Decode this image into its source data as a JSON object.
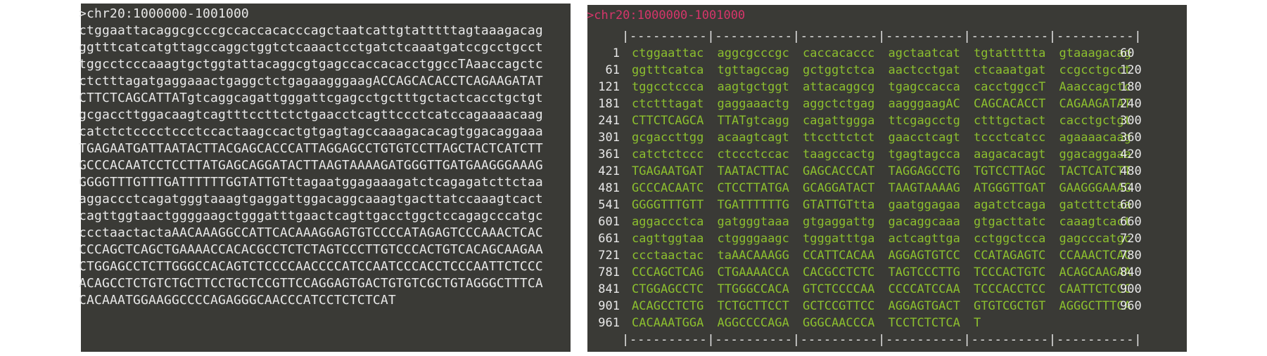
{
  "left_panel": {
    "header": ">chr20:1000000-1001000",
    "lines": [
      "ctggaattacaggcgcccgccaccacacccagctaatcattgtatttttagtaaagacag",
      "ggtttcatcatgttagccaggctggtctcaaactcctgatctcaaatgatccgcctgcct",
      "tggcctcccaaagtgctggtattacaggcgtgagccaccacacctggccTAaaccagctc",
      "ctctttagatgaggaaactgaggctctgagaagggaagACCAGCACACCTCAGAAGATAT",
      "CTTCTCAGCATTATgtcaggcagattgggattcgagcctgctttgctactcacctgctgt",
      "gcgaccttggacaagtcagtttccttctctgaacctcagttccctcatccagaaaacaag",
      "catctctcccctccctccactaagccactgtgagtagccaaagacacagtggacaggaaa",
      "TGAGAATGATTAATACTTACGAGCACCCATTAGGAGCCTGTGTCCTTAGCTACTCATCTT",
      "GCCCACAATCCTCCTTATGAGCAGGATACTTAAGTAAAAGATGGGTTGATGAAGGGAAAG",
      "GGGGTTTGTTTGATTTTTTGGTATTGTttagaatggagaaagatctcagagatcttctaa",
      "aggaccctcagatgggtaaagtgaggattggacaggcaaagtgacttatccaaagtcact",
      "cagttggtaactggggaagctgggatttgaactcagttgacctggctccagagcccatgc",
      "ccctaactactaAACAAAGGCCATTCACAAAGGAGTGTCCCCATAGAGTCCCAAACTCAC",
      "CCCAGCTCAGCTGAAAACCACACGCCTCTCTAGTCCCTTGTCCCACTGTCACAGCAAGAA",
      "CTGGAGCCTCTTGGGCCACAGTCTCCCCAACCCCATCCAATCCCACCTCCCAATTCTCCC",
      "ACAGCCTCTGTCTGCTTCCTGCTCCGTTCCAGGAGTGACTGTGTCGCTGTAGGGCTTTCA",
      "CACAAATGGAAGGCCCCAGAGGGCAACCCATCCTCTCTCAT"
    ]
  },
  "right_panel": {
    "header": ">chr20:1000000-1001000",
    "ruler_top": "|----------|----------|----------|----------|----------|----------|",
    "ruler_bottom": "|----------|----------|----------|----------|----------|----------|",
    "rows": [
      {
        "start": "1",
        "blocks": [
          "ctggaattac",
          "aggcgcccgc",
          "caccacaccc",
          "agctaatcat",
          "tgtattttta",
          "gtaaagacag"
        ],
        "end": "60"
      },
      {
        "start": "61",
        "blocks": [
          "ggtttcatca",
          "tgttagccag",
          "gctggtctca",
          "aactcctgat",
          "ctcaaatgat",
          "ccgcctgcct"
        ],
        "end": "120"
      },
      {
        "start": "121",
        "blocks": [
          "tggcctccca",
          "aagtgctggt",
          "attacaggcg",
          "tgagccacca",
          "cacctggccT",
          "Aaaccagctc"
        ],
        "end": "180"
      },
      {
        "start": "181",
        "blocks": [
          "ctctttagat",
          "gaggaaactg",
          "aggctctgag",
          "aagggaagAC",
          "CAGCACACCT",
          "CAGAAGATAT"
        ],
        "end": "240"
      },
      {
        "start": "241",
        "blocks": [
          "CTTCTCAGCA",
          "TTATgtcagg",
          "cagattggga",
          "ttcgagcctg",
          "ctttgctact",
          "cacctgctgt"
        ],
        "end": "300"
      },
      {
        "start": "301",
        "blocks": [
          "gcgaccttgg",
          "acaagtcagt",
          "ttccttctct",
          "gaacctcagt",
          "tccctcatcc",
          "agaaaacaag"
        ],
        "end": "360"
      },
      {
        "start": "361",
        "blocks": [
          "catctctccc",
          "ctccctccac",
          "taagccactg",
          "tgagtagcca",
          "aagacacagt",
          "ggacaggaaa"
        ],
        "end": "420"
      },
      {
        "start": "421",
        "blocks": [
          "TGAGAATGAT",
          "TAATACTTAC",
          "GAGCACCCAT",
          "TAGGAGCCTG",
          "TGTCCTTAGC",
          "TACTCATCTT"
        ],
        "end": "480"
      },
      {
        "start": "481",
        "blocks": [
          "GCCCACAATC",
          "CTCCTTATGA",
          "GCAGGATACT",
          "TAAGTAAAAG",
          "ATGGGTTGAT",
          "GAAGGGAAAG"
        ],
        "end": "540"
      },
      {
        "start": "541",
        "blocks": [
          "GGGGTTTGTT",
          "TGATTTTTTG",
          "GTATTGTtta",
          "gaatggagaa",
          "agatctcaga",
          "gatcttctaa"
        ],
        "end": "600"
      },
      {
        "start": "601",
        "blocks": [
          "aggaccctca",
          "gatgggtaaa",
          "gtgaggattg",
          "gacaggcaaa",
          "gtgacttatc",
          "caaagtcact"
        ],
        "end": "660"
      },
      {
        "start": "661",
        "blocks": [
          "cagttggtaa",
          "ctggggaagc",
          "tgggatttga",
          "actcagttga",
          "cctggctcca",
          "gagcccatgc"
        ],
        "end": "720"
      },
      {
        "start": "721",
        "blocks": [
          "ccctaactac",
          "taAACAAAGG",
          "CCATTCACAA",
          "AGGAGTGTCC",
          "CCATAGAGTC",
          "CCAAACTCAC"
        ],
        "end": "780"
      },
      {
        "start": "781",
        "blocks": [
          "CCCAGCTCAG",
          "CTGAAAACCA",
          "CACGCCTCTC",
          "TAGTCCCTTG",
          "TCCCACTGTC",
          "ACAGCAAGAA"
        ],
        "end": "840"
      },
      {
        "start": "841",
        "blocks": [
          "CTGGAGCCTC",
          "TTGGGCCACA",
          "GTCTCCCCAA",
          "CCCCATCCAA",
          "TCCCACCTCC",
          "CAATTCTCCC"
        ],
        "end": "900"
      },
      {
        "start": "901",
        "blocks": [
          "ACAGCCTCTG",
          "TCTGCTTCCT",
          "GCTCCGTTCC",
          "AGGAGTGACT",
          "GTGTCGCTGT",
          "AGGGCTTTCA"
        ],
        "end": "960"
      },
      {
        "start": "961",
        "blocks": [
          "CACAAATGGA",
          "AGGCCCCAGA",
          "GGGCAACCCA",
          "TCCTCTCTCA",
          "T"
        ]
      }
    ]
  }
}
